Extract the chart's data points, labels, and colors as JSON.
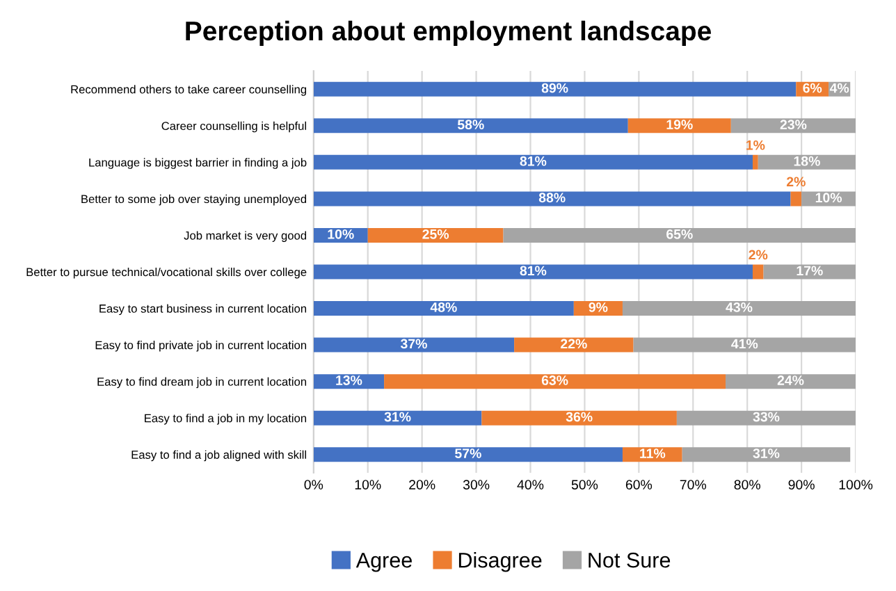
{
  "chart_data": {
    "type": "bar",
    "orientation": "horizontal",
    "stacked": true,
    "title": "Perception about employment landscape",
    "categories": [
      "Recommend others to take career counselling",
      "Career counselling is helpful",
      "Language is biggest barrier in finding a job",
      "Better to some job over staying unemployed",
      "Job market is very good",
      "Better to pursue technical/vocational skills over college",
      "Easy to start business in current location",
      "Easy to find private job in current location",
      "Easy to find dream job in current location",
      "Easy to find a job in my location",
      "Easy to find a job aligned with skill"
    ],
    "series": [
      {
        "name": "Agree",
        "color": "#4472c4",
        "values": [
          89,
          58,
          81,
          88,
          10,
          81,
          48,
          37,
          13,
          31,
          57
        ],
        "value_labels": [
          "89%",
          "58%",
          "81%",
          "88%",
          "10%",
          "81%",
          "48%",
          "37%",
          "13%",
          "31%",
          "57%"
        ]
      },
      {
        "name": "Disagree",
        "color": "#ed7d31",
        "values": [
          6,
          19,
          1,
          2,
          25,
          2,
          9,
          22,
          63,
          36,
          11
        ],
        "value_labels": [
          "6%",
          "19%",
          "1%",
          "2%",
          "25%",
          "2%",
          "9%",
          "22%",
          "63%",
          "36%",
          "11%"
        ]
      },
      {
        "name": "Not Sure",
        "color": "#a5a5a5",
        "values": [
          4,
          23,
          18,
          10,
          65,
          17,
          43,
          41,
          24,
          33,
          31
        ],
        "value_labels": [
          "4%",
          "23%",
          "18%",
          "10%",
          "65%",
          "17%",
          "43%",
          "41%",
          "24%",
          "33%",
          "31%"
        ]
      }
    ],
    "xlim": [
      0,
      100
    ],
    "xticks": [
      {
        "value": 0,
        "label": "0%"
      },
      {
        "value": 10,
        "label": "10%"
      },
      {
        "value": 20,
        "label": "20%"
      },
      {
        "value": 30,
        "label": "30%"
      },
      {
        "value": 40,
        "label": "40%"
      },
      {
        "value": 50,
        "label": "50%"
      },
      {
        "value": 60,
        "label": "60%"
      },
      {
        "value": 70,
        "label": "70%"
      },
      {
        "value": 80,
        "label": "80%"
      },
      {
        "value": 90,
        "label": "90%"
      },
      {
        "value": 100,
        "label": "100%"
      }
    ],
    "grid": "x",
    "legend": "bottom"
  }
}
